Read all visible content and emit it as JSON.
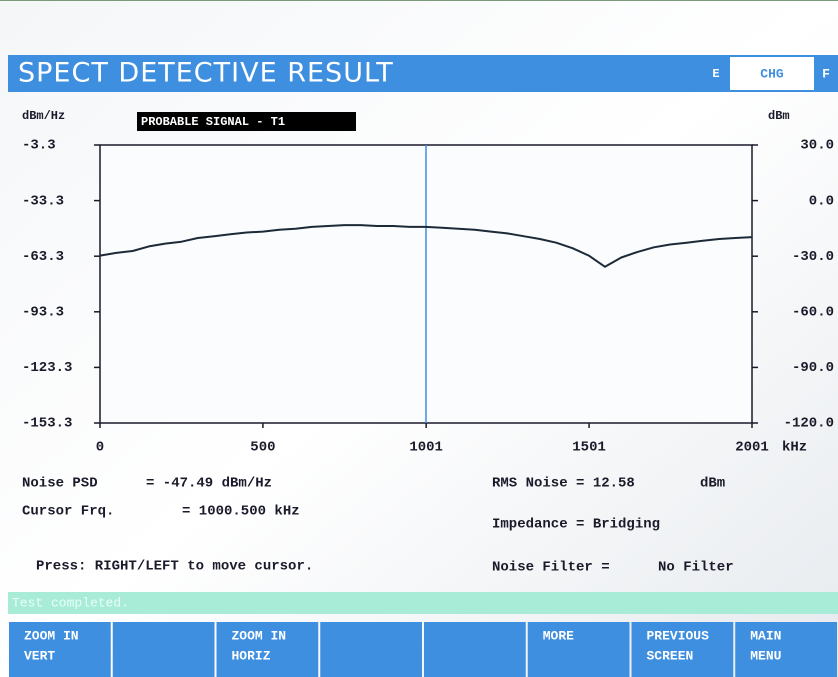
{
  "header": {
    "title": "SPECT DETECTIVE RESULT",
    "left_key": "E",
    "mode": "CHG",
    "right_key": "F"
  },
  "chart_data": {
    "type": "line",
    "annotation": "PROBABLE SIGNAL - T1",
    "ylabel": "dBm/Hz",
    "y2label": "dBm",
    "xunit": "kHz",
    "x": [
      0,
      50,
      100,
      150,
      200,
      250,
      300,
      350,
      400,
      450,
      500,
      550,
      600,
      650,
      700,
      750,
      800,
      850,
      900,
      950,
      1000,
      1050,
      1100,
      1150,
      1200,
      1250,
      1300,
      1350,
      1400,
      1450,
      1500,
      1550,
      1600,
      1650,
      1700,
      1750,
      1800,
      1850,
      1900,
      1950,
      2001
    ],
    "series": [
      {
        "name": "PSD",
        "color": "#1c2a38",
        "values": [
          -63,
          -61.5,
          -60.5,
          -58,
          -56.5,
          -55.5,
          -53.5,
          -52.5,
          -51.5,
          -50.5,
          -50,
          -49,
          -48.5,
          -47.5,
          -47,
          -46.5,
          -46.5,
          -47,
          -47,
          -47.5,
          -47.5,
          -48,
          -48.5,
          -49,
          -50,
          -51,
          -52.5,
          -54,
          -56,
          -59,
          -63,
          -69,
          -64,
          -61,
          -58.5,
          -57,
          -56,
          -55,
          -54,
          -53.5,
          -53
        ]
      }
    ],
    "cursor": 1000.5,
    "xlim": [
      0,
      2001
    ],
    "xticks": [
      0,
      500,
      1001,
      1501,
      2001
    ],
    "ylim": [
      -153.3,
      -3.3
    ],
    "yticks": [
      -3.3,
      -33.3,
      -63.3,
      -93.3,
      -123.3,
      -153.3
    ],
    "y2lim": [
      -120,
      30
    ],
    "y2ticks": [
      {
        "value": 30,
        "label": "30.0"
      },
      {
        "value": 0,
        "label": "0.0"
      },
      {
        "value": -30,
        "label": "-30.0"
      },
      {
        "value": -60,
        "label": "-60.0"
      },
      {
        "value": -90,
        "label": "-90.0"
      },
      {
        "value": -120,
        "label": "-120.0"
      }
    ]
  },
  "readings": {
    "noise_psd_label": "Noise PSD",
    "noise_psd_value": "= -47.49 dBm/Hz",
    "cursor_label": "Cursor Frq.",
    "cursor_value": "= 1000.500 kHz",
    "rms_noise": "RMS Noise = 12.58",
    "rms_unit": "dBm",
    "impedance": "Impedance = Bridging",
    "hint": "Press: RIGHT/LEFT to move cursor.",
    "noise_filter_label": "Noise Filter =",
    "noise_filter_value": "No Filter"
  },
  "status": "Test completed.",
  "buttons": [
    {
      "slot": 0,
      "lines": [
        "ZOOM IN",
        "VERT"
      ]
    },
    {
      "slot": 2,
      "lines": [
        "ZOOM IN",
        "HORIZ"
      ]
    },
    {
      "slot": 5,
      "lines": [
        "MORE"
      ]
    },
    {
      "slot": 6,
      "lines": [
        "PREVIOUS",
        "SCREEN"
      ]
    },
    {
      "slot": 7,
      "lines": [
        "MAIN",
        "MENU"
      ]
    }
  ]
}
